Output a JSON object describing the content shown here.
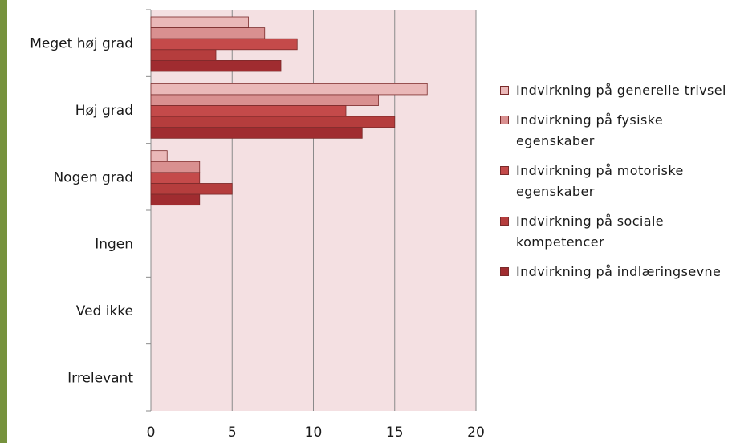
{
  "chart_data": {
    "type": "bar",
    "orientation": "horizontal",
    "categories": [
      "Meget høj grad",
      "Høj grad",
      "Nogen grad",
      "Ingen",
      "Ved ikke",
      "Irrelevant"
    ],
    "series": [
      {
        "name": "Indvirkning på generelle trivsel",
        "color": "#eab8b8",
        "values": [
          6,
          17,
          1,
          0,
          0,
          0
        ]
      },
      {
        "name": "Indvirkning på fysiske egenskaber",
        "color": "#d99090",
        "values": [
          7,
          14,
          3,
          0,
          0,
          0
        ]
      },
      {
        "name": "Indvirkning på motoriske egenskaber",
        "color": "#c44a4a",
        "values": [
          9,
          12,
          3,
          0,
          0,
          0
        ]
      },
      {
        "name": "Indvirkning på sociale kompetencer",
        "color": "#b53d3d",
        "values": [
          4,
          15,
          5,
          0,
          0,
          0
        ]
      },
      {
        "name": "Indvirkning på indlæringsevne",
        "color": "#a02c30",
        "values": [
          8,
          13,
          3,
          0,
          0,
          0
        ]
      }
    ],
    "xticks": [
      "0",
      "5",
      "10",
      "15",
      "20"
    ],
    "xlim": [
      0,
      20
    ],
    "grid": true,
    "legend": "right",
    "plot_background": "#f4e0e2"
  }
}
